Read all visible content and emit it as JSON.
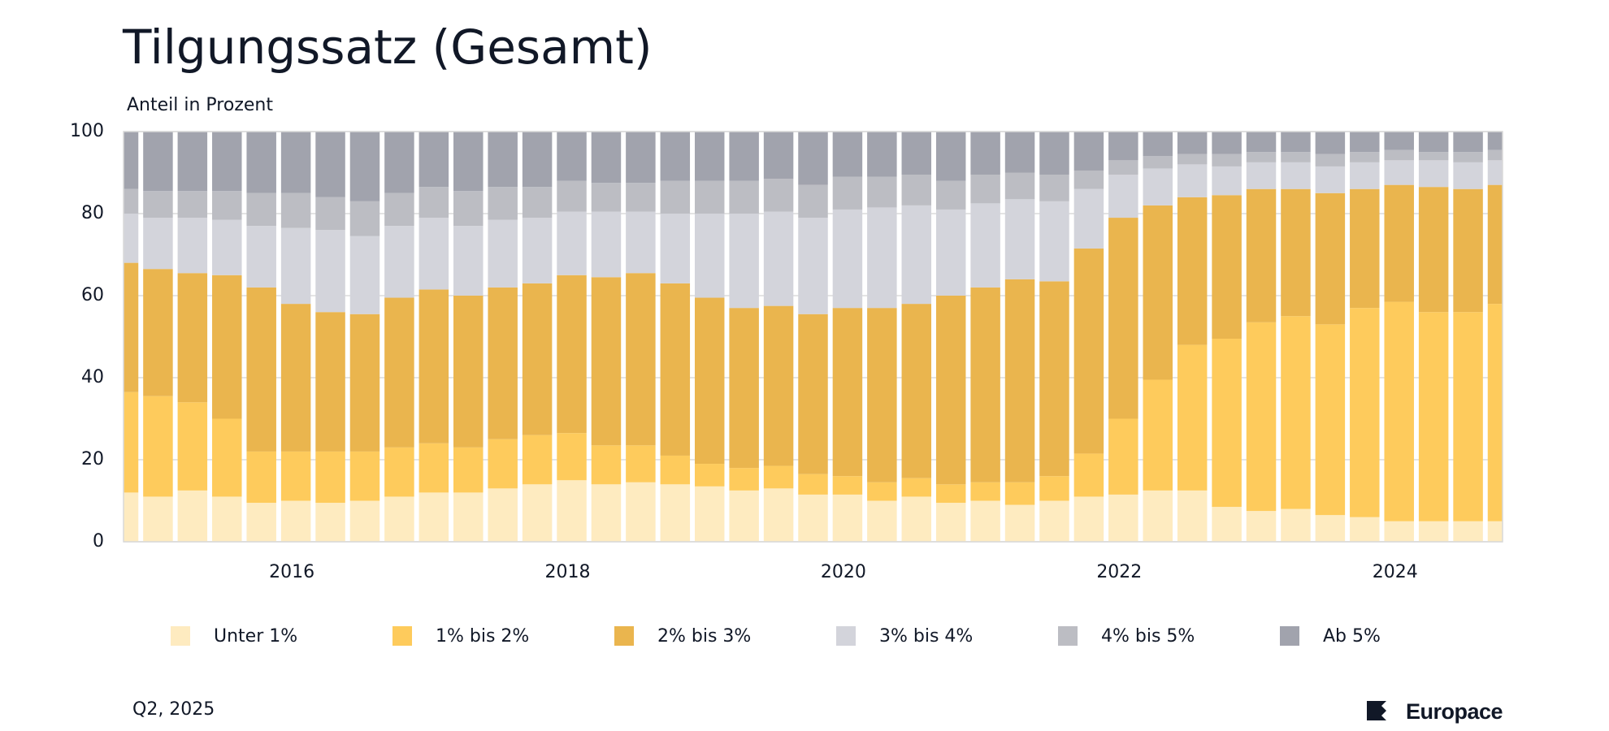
{
  "chart_data": {
    "type": "stacked_bar",
    "title": "Tilgungssatz (Gesamt)",
    "subtitle": "Anteil in Prozent",
    "categories": [
      null,
      null,
      null,
      null,
      null,
      "2016",
      null,
      null,
      null,
      null,
      null,
      null,
      null,
      "2018",
      null,
      null,
      null,
      null,
      null,
      null,
      null,
      "2020",
      null,
      null,
      null,
      null,
      null,
      null,
      null,
      "2022",
      null,
      null,
      null,
      null,
      null,
      null,
      null,
      "2024",
      null,
      null,
      null
    ],
    "series": [
      {
        "name": "Unter 1%",
        "color": "#feebc0",
        "values": [
          12,
          11,
          12.5,
          11,
          9.5,
          10,
          9.5,
          10,
          11,
          12,
          12,
          13,
          14,
          15,
          14,
          14.5,
          14,
          13.5,
          12.5,
          13,
          11.5,
          11.5,
          10,
          11,
          9.5,
          10,
          9,
          10,
          11,
          11.5,
          12.5,
          12.5,
          8.5,
          7.5,
          8,
          6.5,
          6,
          5,
          5,
          5,
          5
        ]
      },
      {
        "name": "1% bis 2%",
        "color": "#fecb5c",
        "values": [
          24.5,
          24.5,
          21.5,
          19,
          12.5,
          12,
          12.5,
          12,
          12,
          12,
          11,
          12,
          12,
          11.5,
          9.5,
          9,
          7,
          5.5,
          5.5,
          5.5,
          5,
          4.5,
          4.5,
          4.5,
          4.5,
          4.5,
          5.5,
          6,
          10.5,
          18.5,
          27,
          35.5,
          41,
          46,
          47,
          46.5,
          51,
          53.5,
          51,
          51,
          53
        ]
      },
      {
        "name": "2% bis 3%",
        "color": "#eab54e",
        "values": [
          31.5,
          31,
          31.5,
          35,
          40,
          36,
          34,
          33.5,
          36.5,
          37.5,
          37,
          37,
          37,
          38.5,
          41,
          42,
          42,
          40.5,
          39,
          39,
          39,
          41,
          42.5,
          42.5,
          46,
          47.5,
          49.5,
          47.5,
          50,
          49,
          42.5,
          36,
          35,
          32.5,
          31,
          32,
          29,
          28.5,
          30.5,
          30,
          29
        ]
      },
      {
        "name": "3% bis 4%",
        "color": "#d3d4db",
        "values": [
          12,
          12.5,
          13.5,
          13.5,
          15,
          18.5,
          20,
          19,
          17.5,
          17.5,
          17,
          16.5,
          16,
          15.5,
          16,
          15,
          17,
          20.5,
          23,
          23,
          23.5,
          24,
          24.5,
          24,
          21,
          20.5,
          19.5,
          19.5,
          14.5,
          10.5,
          9,
          8,
          7,
          6.5,
          6.5,
          6.5,
          6.5,
          6,
          6.5,
          6.5,
          6
        ]
      },
      {
        "name": "4% bis 5%",
        "color": "#bcbdc3",
        "values": [
          6,
          6.5,
          6.5,
          7,
          8,
          8.5,
          8,
          8.5,
          8,
          7.5,
          8.5,
          8,
          7.5,
          7.5,
          7,
          7,
          8,
          8,
          8,
          8,
          8,
          8,
          7.5,
          7.5,
          7,
          7,
          6.5,
          6.5,
          4.5,
          3.5,
          3,
          2.5,
          3,
          2.5,
          2.5,
          3,
          2.5,
          2.5,
          2,
          2.5,
          2.5
        ]
      },
      {
        "name": "Ab 5%",
        "color": "#a1a3ad",
        "values": [
          14,
          14.5,
          14.5,
          14.5,
          15,
          15,
          16,
          17,
          15,
          13.5,
          14.5,
          13.5,
          13.5,
          12,
          12.5,
          12.5,
          12,
          12,
          12,
          11.5,
          13,
          11,
          11,
          10.5,
          12,
          10.5,
          10,
          10.5,
          9.5,
          7,
          6,
          5.5,
          5.5,
          5,
          5,
          5.5,
          5,
          4.5,
          5,
          5,
          4.5
        ]
      }
    ],
    "ylim": [
      0,
      100
    ],
    "yticks": [
      0,
      20,
      40,
      60,
      80,
      100
    ],
    "grid": true,
    "footnote": "Q2, 2025",
    "brand": "Europace"
  }
}
